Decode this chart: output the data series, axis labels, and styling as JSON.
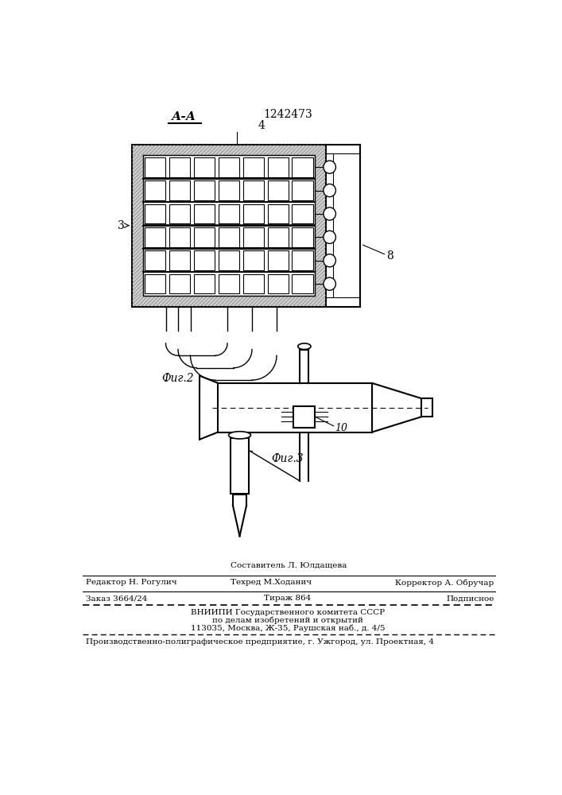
{
  "patent_number": "1242473",
  "fig2_label": "Фиг.2",
  "fig3_label": "Фиг.3",
  "section_label": "А-А",
  "label_3": "3",
  "label_4": "4",
  "label_8": "8",
  "label_10": "10",
  "footer_line1_center_top": "Составитель Л. Юлдащева",
  "footer_line1_left": "Редактор Н. Рогулич",
  "footer_line1_center_bot": "Техред М.Ходанич",
  "footer_line1_right": "Корректор А. Обручар",
  "footer_line2_left": "Заказ 3664/24",
  "footer_line2_center": "Тираж 864",
  "footer_line2_right": "Подписное",
  "footer_line3": "ВНИИПИ Государственного комитета СССР",
  "footer_line4": "по делам изобретений и открытий",
  "footer_line5": "113035, Москва, Ж-35, Раушская наб., д. 4/5",
  "footer_line6": "Производственно-полиграфическое предприятие, г. Ужгород, ул. Проектная, 4",
  "bg_color": "#ffffff",
  "line_color": "#000000"
}
